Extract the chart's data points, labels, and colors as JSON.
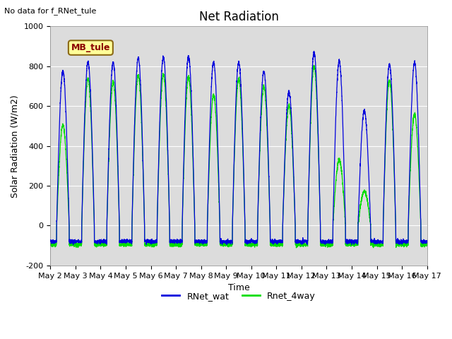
{
  "title": "Net Radiation",
  "xlabel": "Time",
  "ylabel": "Solar Radiation (W/m2)",
  "note": "No data for f_RNet_tule",
  "mb_label": "MB_tule",
  "ylim": [
    -200,
    1000
  ],
  "yticks": [
    -200,
    0,
    200,
    400,
    600,
    800,
    1000
  ],
  "xtick_labels": [
    "May 2",
    "May 3",
    "May 4",
    "May 5",
    "May 6",
    "May 7",
    "May 8",
    "May 9",
    "May 10",
    "May 11",
    "May 12",
    "May 13",
    "May 14",
    "May 15",
    "May 16",
    "May 17"
  ],
  "line1_color": "#0000dd",
  "line2_color": "#00dd00",
  "line1_label": "RNet_wat",
  "line2_label": "Rnet_4way",
  "bg_color": "#dcdcdc",
  "n_days": 15,
  "points_per_day": 288,
  "day_peaks1": [
    775,
    820,
    820,
    840,
    845,
    850,
    820,
    820,
    775,
    670,
    870,
    825,
    575,
    810,
    820
  ],
  "day_peaks2": [
    775,
    820,
    820,
    840,
    845,
    850,
    820,
    820,
    775,
    670,
    870,
    825,
    575,
    810,
    820
  ],
  "green_scale": [
    0.65,
    0.9,
    0.88,
    0.9,
    0.9,
    0.88,
    0.8,
    0.9,
    0.9,
    0.9,
    0.92,
    0.4,
    0.3,
    0.9,
    0.68
  ],
  "night_val1": -80,
  "night_val2": -95,
  "note_fontsize": 8,
  "title_fontsize": 12,
  "axis_fontsize": 9,
  "tick_fontsize": 8,
  "legend_fontsize": 9
}
